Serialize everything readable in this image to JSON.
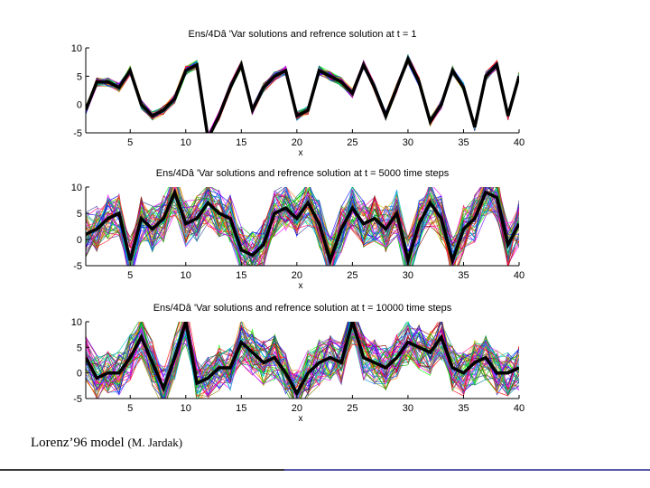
{
  "chart_data": [
    {
      "type": "line",
      "title": "Ens/4Dâ 'Var solutions and refrence solution at t = 1",
      "xlabel": "x",
      "ylabel": "",
      "xlim": [
        1,
        40
      ],
      "ylim": [
        -5,
        10
      ],
      "xticks": [
        5,
        10,
        15,
        20,
        25,
        30,
        35,
        40
      ],
      "yticks": [
        10,
        5,
        0,
        -5
      ],
      "ensemble_members": 50,
      "ensemble_spread": 0.8,
      "seed": 11,
      "series": [
        {
          "name": "reference solution",
          "color": "#000000",
          "values": [
            -1,
            4,
            4,
            3,
            6,
            0,
            -2,
            -1,
            1,
            6,
            7,
            -6,
            -2,
            3,
            7,
            -1,
            3,
            5,
            6,
            -2,
            -1,
            6,
            5,
            4,
            2,
            7,
            3,
            -2,
            3,
            8,
            4,
            -3,
            0,
            6,
            3,
            -4,
            5,
            7,
            -2,
            5
          ]
        }
      ]
    },
    {
      "type": "line",
      "title": "Ens/4Dâ 'Var solutions and refrence solution at t = 5000 time steps",
      "xlabel": "x",
      "ylabel": "",
      "xlim": [
        1,
        40
      ],
      "ylim": [
        -5,
        10
      ],
      "xticks": [
        5,
        10,
        15,
        20,
        25,
        30,
        35,
        40
      ],
      "yticks": [
        10,
        5,
        0,
        -5
      ],
      "ensemble_members": 50,
      "ensemble_spread": 4.5,
      "seed": 22,
      "series": [
        {
          "name": "reference solution",
          "color": "#000000",
          "values": [
            1,
            2,
            4,
            5,
            -4,
            4,
            2,
            4,
            9,
            3,
            4,
            7,
            5,
            4,
            -2,
            -3,
            -1,
            5,
            6,
            4,
            7,
            3,
            -4,
            2,
            6,
            3,
            4,
            2,
            5,
            -4,
            3,
            7,
            4,
            -4,
            2,
            4,
            9,
            8,
            -1,
            3
          ]
        }
      ]
    },
    {
      "type": "line",
      "title": "Ens/4Dâ 'Var solutions and refrence solution at t = 10000 time steps",
      "xlabel": "x",
      "ylabel": "",
      "xlim": [
        1,
        40
      ],
      "ylim": [
        -5,
        10
      ],
      "xticks": [
        5,
        10,
        15,
        20,
        25,
        30,
        35,
        40
      ],
      "yticks": [
        10,
        5,
        0,
        -5
      ],
      "ensemble_members": 50,
      "ensemble_spread": 4.5,
      "seed": 33,
      "series": [
        {
          "name": "reference solution",
          "color": "#000000",
          "values": [
            3,
            -1,
            0,
            0,
            3,
            7,
            2,
            -3,
            3,
            10,
            -2,
            -1,
            1,
            1,
            6,
            4,
            2,
            3,
            0,
            -4,
            0,
            2,
            3,
            2,
            10,
            3,
            2,
            1,
            3,
            6,
            5,
            4,
            7,
            1,
            0,
            2,
            3,
            0,
            0,
            1
          ]
        }
      ]
    }
  ],
  "caption": {
    "main": "Lorenz’96 model",
    "credit": "(M. Jardak)"
  },
  "colors": {
    "footer_dark": "#3a3a3a",
    "footer_accent": "#5a5aa8"
  }
}
